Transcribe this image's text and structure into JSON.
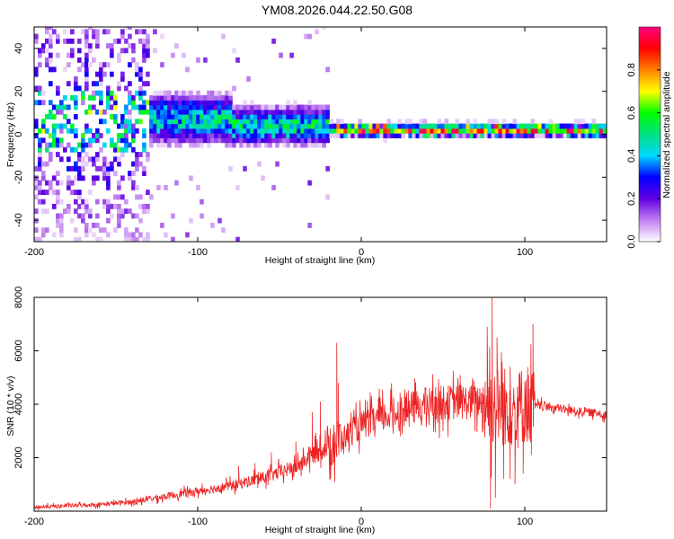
{
  "title": "YM08.2026.044.22.50.G08",
  "chart_data": [
    {
      "type": "heatmap",
      "xlabel": "Height of straight line (km)",
      "ylabel": "Frequency (Hz)",
      "xlim": [
        -200,
        150
      ],
      "ylim": [
        -50,
        50
      ],
      "xticks": [
        "-200",
        "-100",
        "0",
        "100"
      ],
      "yticks": [
        "-40",
        "-20",
        "0",
        "20",
        "40"
      ],
      "colorbar": {
        "label": "Normalized spectral amplitude",
        "range": [
          0,
          1
        ],
        "ticks": [
          "0.0",
          "0.2",
          "0.4",
          "0.6",
          "0.8"
        ],
        "colors": [
          "#ffffff",
          "#c080f0",
          "#6000e0",
          "#0000ff",
          "#00d8ff",
          "#00e080",
          "#00ff00",
          "#ffff00",
          "#ff8000",
          "#ff0000",
          "#ff0080"
        ]
      },
      "bands": [
        {
          "x_from": -200,
          "x_to": -130,
          "center_hz": 5,
          "spread_hz": 45,
          "amplitude": 0.25
        },
        {
          "x_from": -130,
          "x_to": -80,
          "center_hz": 6,
          "spread_hz": 12,
          "amplitude": 0.45
        },
        {
          "x_from": -80,
          "x_to": -20,
          "center_hz": 3,
          "spread_hz": 9,
          "amplitude": 0.5
        },
        {
          "x_from": -20,
          "x_to": 150,
          "center_hz": 1,
          "spread_hz": 3,
          "amplitude": 0.85
        }
      ]
    },
    {
      "type": "line",
      "xlabel": "Height of straight line (km)",
      "ylabel": "SNR (10 * v/v)",
      "xlim": [
        -200,
        150
      ],
      "ylim": [
        0,
        8000
      ],
      "xticks": [
        "-200",
        "-100",
        "0",
        "100"
      ],
      "yticks": [
        "2000",
        "4000",
        "6000",
        "8000"
      ],
      "color": "#ee2222",
      "series": [
        {
          "name": "SNR",
          "x": [
            -200,
            -180,
            -160,
            -140,
            -120,
            -100,
            -80,
            -60,
            -40,
            -30,
            -20,
            -15,
            -10,
            0,
            10,
            20,
            30,
            40,
            50,
            60,
            70,
            75,
            80,
            85,
            90,
            95,
            100,
            105,
            110,
            120,
            130,
            140,
            150
          ],
          "values": [
            150,
            200,
            250,
            350,
            550,
            750,
            950,
            1250,
            1650,
            2100,
            2450,
            2550,
            2800,
            3200,
            3450,
            3650,
            3850,
            4000,
            4050,
            4100,
            4050,
            4200,
            4000,
            3900,
            3950,
            3700,
            4100,
            3900,
            3950,
            3850,
            3750,
            3700,
            3600
          ]
        }
      ],
      "spikes": [
        {
          "x": -75,
          "y": 1700
        },
        {
          "x": -65,
          "y": 1800
        },
        {
          "x": -55,
          "y": 2200
        },
        {
          "x": -40,
          "y": 2600
        },
        {
          "x": -30,
          "y": 3700
        },
        {
          "x": -25,
          "y": 4100
        },
        {
          "x": -15,
          "y": 6300
        },
        {
          "x": -14,
          "y": 4800
        },
        {
          "x": 77,
          "y": 6900
        },
        {
          "x": 80,
          "y": 8000
        },
        {
          "x": 83,
          "y": 6500
        },
        {
          "x": 86,
          "y": 5600
        },
        {
          "x": 91,
          "y": 5400
        },
        {
          "x": 97,
          "y": 5200
        },
        {
          "x": 105,
          "y": 7000
        }
      ],
      "dips": [
        {
          "x": 79,
          "y": 100
        },
        {
          "x": 82,
          "y": 500
        },
        {
          "x": 87,
          "y": 1200
        },
        {
          "x": 94,
          "y": 1000
        },
        {
          "x": 99,
          "y": 1400
        },
        {
          "x": 104,
          "y": 2100
        }
      ]
    }
  ]
}
